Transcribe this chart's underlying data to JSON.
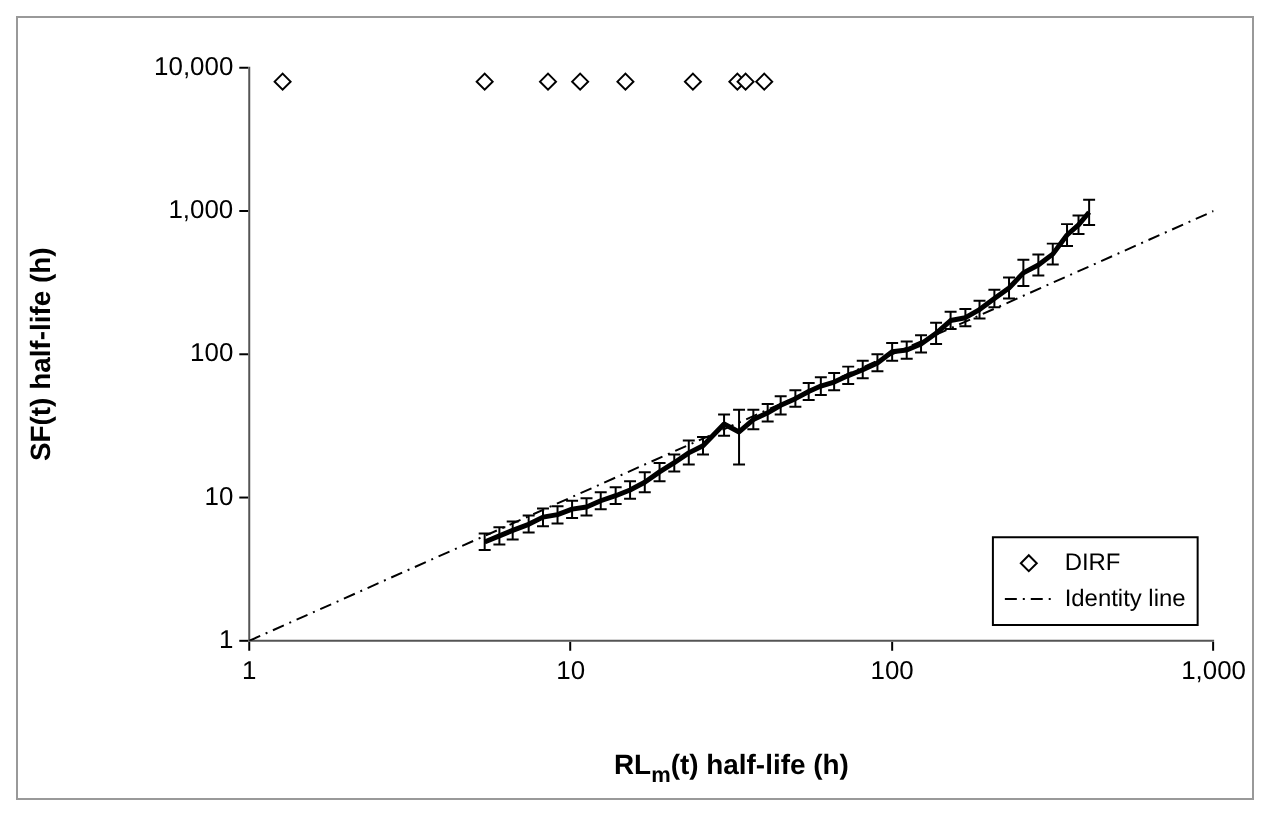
{
  "chart_data": {
    "type": "line",
    "xlabel": "RL$_{m}$(t) half-life (h)",
    "ylabel": "SF(t) half-life (h)",
    "log": "xy",
    "grid": false,
    "legend": "bottom right",
    "xlim": [
      1,
      1000
    ],
    "xticks": [
      1,
      10,
      100,
      {
        "value": 1000,
        "label": "1,000"
      }
    ],
    "ylim": [
      1,
      10000
    ],
    "yticks": [
      1,
      10,
      100,
      {
        "value": 1000,
        "label": "1,000"
      },
      {
        "value": 10000,
        "label": "10,000"
      }
    ],
    "series": [
      {
        "type": "line",
        "color": "#000000",
        "line_style": "solid",
        "x": [
          5.4,
          6.0,
          6.6,
          7.4,
          8.2,
          9.1,
          10.1,
          11.2,
          12.4,
          13.8,
          15.3,
          17.0,
          18.9,
          21,
          23.3,
          25.8,
          30,
          33.4,
          37,
          41,
          45,
          50,
          55,
          60,
          66,
          73,
          81,
          90,
          100,
          111,
          123,
          137,
          152,
          169,
          187,
          208,
          231,
          256,
          285,
          316,
          350,
          380,
          410
        ],
        "values": [
          4.9,
          5.4,
          5.9,
          6.5,
          7.3,
          7.6,
          8.3,
          8.6,
          9.5,
          10.3,
          11.3,
          12.8,
          15.1,
          17.5,
          20.5,
          23,
          32.6,
          28.7,
          35,
          39,
          44,
          49,
          55,
          60,
          64,
          71,
          78,
          87,
          104,
          107,
          118,
          140,
          172,
          180,
          205,
          245,
          290,
          370,
          420,
          500,
          680,
          800,
          980
        ],
        "errors": [
          [
            4.3,
            5.6
          ],
          [
            4.7,
            6.2
          ],
          [
            5.1,
            6.8
          ],
          [
            5.7,
            7.5
          ],
          [
            6.3,
            8.4
          ],
          [
            6.6,
            8.7
          ],
          [
            7.2,
            9.5
          ],
          [
            7.5,
            9.9
          ],
          [
            8.3,
            10.9
          ],
          [
            9.0,
            11.8
          ],
          [
            9.8,
            13.0
          ],
          [
            10.9,
            15
          ],
          [
            13,
            17.4
          ],
          [
            15.2,
            20
          ],
          [
            17,
            25
          ],
          [
            20,
            26.5
          ],
          [
            27,
            38
          ],
          [
            17,
            41
          ],
          [
            30,
            41
          ],
          [
            34,
            45
          ],
          [
            38,
            51
          ],
          [
            43,
            56
          ],
          [
            48,
            63
          ],
          [
            52,
            69
          ],
          [
            56,
            74
          ],
          [
            62,
            82
          ],
          [
            68,
            90
          ],
          [
            76,
            100
          ],
          [
            90,
            120
          ],
          [
            93,
            123
          ],
          [
            103,
            136
          ],
          [
            118,
            166
          ],
          [
            150,
            198
          ],
          [
            157,
            207
          ],
          [
            178,
            236
          ],
          [
            213,
            282
          ],
          [
            245,
            343
          ],
          [
            300,
            456
          ],
          [
            355,
            497
          ],
          [
            423,
            592
          ],
          [
            570,
            810
          ],
          [
            690,
            930
          ],
          [
            800,
            1200
          ]
        ]
      },
      {
        "type": "scatter",
        "name": "DIRF",
        "color": "#000000",
        "marker": "diamond",
        "x": [
          1.27,
          5.4,
          8.5,
          10.7,
          14.8,
          24,
          33,
          35,
          40
        ],
        "values": [
          8000,
          8000,
          8000,
          8000,
          8000,
          8000,
          8000,
          8000,
          8000
        ]
      },
      {
        "type": "line",
        "name": "Identity line",
        "color": "#000000",
        "marker": "none",
        "line_style": "dashed",
        "x": [
          1,
          1000
        ],
        "values": [
          1,
          1000
        ]
      }
    ]
  }
}
